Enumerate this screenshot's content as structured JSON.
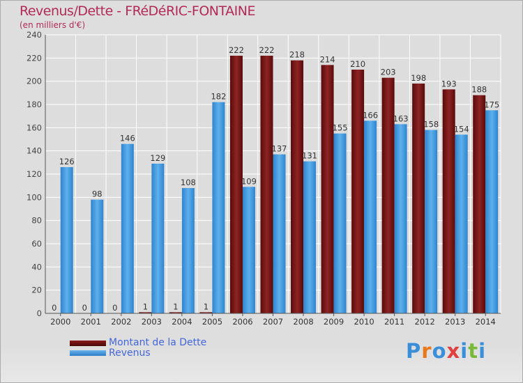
{
  "header": {
    "title": "Revenus/Dette - FRéDéRIC-FONTAINE",
    "subtitle": "(en milliers d'€)"
  },
  "chart_data": {
    "type": "bar",
    "title": "Revenus/Dette - FRéDéRIC-FONTAINE",
    "subtitle": "(en milliers d'€)",
    "xlabel": "",
    "ylabel": "",
    "ylim": [
      0,
      240
    ],
    "yticks": [
      0,
      20,
      40,
      60,
      80,
      100,
      120,
      140,
      160,
      180,
      200,
      220,
      240
    ],
    "grid": true,
    "categories": [
      "2000",
      "2001",
      "2002",
      "2003",
      "2004",
      "2005",
      "2006",
      "2007",
      "2008",
      "2009",
      "2010",
      "2011",
      "2012",
      "2013",
      "2014"
    ],
    "series": [
      {
        "name": "Montant de la Dette",
        "color": "#8b1a1a",
        "values": [
          0,
          0,
          0,
          1,
          1,
          1,
          222,
          222,
          218,
          214,
          210,
          203,
          198,
          193,
          188
        ]
      },
      {
        "name": "Revenus",
        "color": "#4a9fe0",
        "values": [
          126,
          98,
          146,
          129,
          108,
          182,
          109,
          137,
          131,
          155,
          166,
          163,
          158,
          154,
          175
        ]
      }
    ],
    "legend_position": "bottom-left"
  },
  "logo": {
    "text": "Proxiti",
    "letter_colors": [
      "#3a8fd8",
      "#e87a1c",
      "#3a8fd8",
      "#e04040",
      "#3a8fd8",
      "#7ab83a",
      "#3a8fd8"
    ]
  }
}
